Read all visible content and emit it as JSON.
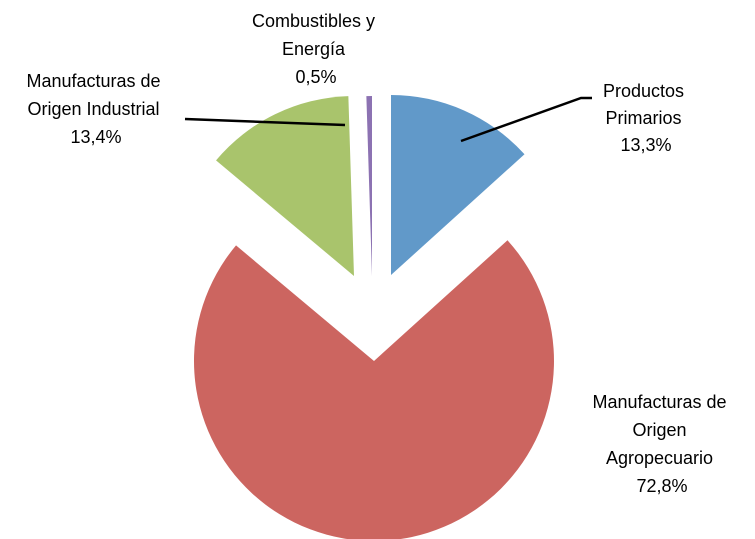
{
  "chart_data": {
    "type": "pie",
    "title": "",
    "exploded": true,
    "slices": [
      {
        "label": "Productos Primarios",
        "label_lines": [
          "Productos",
          "Primarios"
        ],
        "value": 13.3,
        "value_text": "13,3%",
        "color": "#6199C9"
      },
      {
        "label": "Manufacturas de Origen Agropecuario",
        "label_lines": [
          "Manufacturas de",
          "Origen",
          "Agropecuario"
        ],
        "value": 72.8,
        "value_text": "72,8%",
        "color": "#CC6560"
      },
      {
        "label": "Manufacturas de Origen Industrial",
        "label_lines": [
          "Manufacturas de",
          "Origen Industrial"
        ],
        "value": 13.4,
        "value_text": "13,4%",
        "color": "#A9C46C"
      },
      {
        "label": "Combustibles y Energía",
        "label_lines": [
          "Combustibles y",
          "Energía"
        ],
        "value": 0.5,
        "value_text": "0,5%",
        "color": "#8C72B2"
      }
    ]
  }
}
